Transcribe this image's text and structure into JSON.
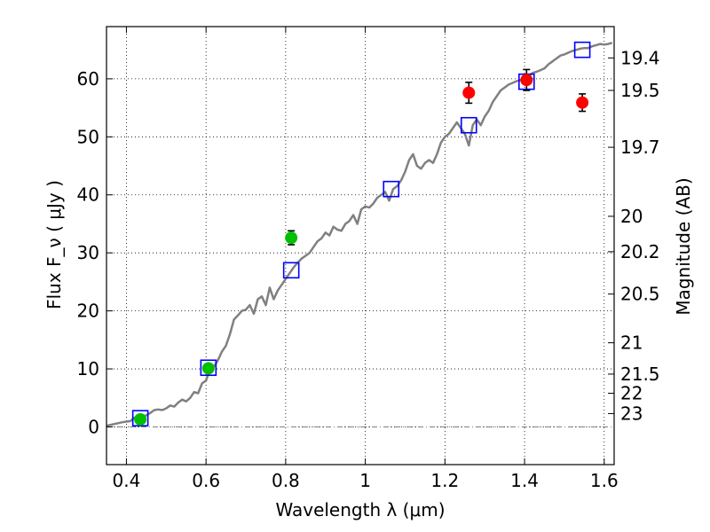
{
  "chart_data": {
    "type": "scatter",
    "xlabel": "Wavelength  λ (μm)",
    "ylabel": "Flux  F_ν  ( μJy )",
    "ylabel_right": "Magnitude (AB)",
    "xlim": [
      0.35,
      1.625
    ],
    "ylim": [
      -6.5,
      69
    ],
    "grid": true,
    "x_ticks": [
      0.4,
      0.6,
      0.8,
      1.0,
      1.2,
      1.4,
      1.6
    ],
    "x_tick_labels": [
      "0.4",
      "0.6",
      "0.8",
      "1",
      "1.2",
      "1.4",
      "1.6"
    ],
    "y_ticks": [
      0,
      10,
      20,
      30,
      40,
      50,
      60
    ],
    "y_tick_labels": [
      "0",
      "10",
      "20",
      "30",
      "40",
      "50",
      "60"
    ],
    "right_ticks": [
      {
        "label": "19.4",
        "flux": 63.6
      },
      {
        "label": "19.5",
        "flux": 58.0
      },
      {
        "label": "19.7",
        "flux": 48.2
      },
      {
        "label": "20",
        "flux": 36.3
      },
      {
        "label": "20.2",
        "flux": 30.2
      },
      {
        "label": "20.5",
        "flux": 22.9
      },
      {
        "label": "21",
        "flux": 14.5
      },
      {
        "label": "21.5",
        "flux": 9.1
      },
      {
        "label": "22",
        "flux": 5.8
      },
      {
        "label": "23",
        "flux": 2.3
      }
    ],
    "series": [
      {
        "kind": "model_curve",
        "color": "#808080",
        "points": [
          [
            0.35,
            0.2
          ],
          [
            0.37,
            0.5
          ],
          [
            0.39,
            0.8
          ],
          [
            0.41,
            1.0
          ],
          [
            0.42,
            1.6
          ],
          [
            0.43,
            1.1
          ],
          [
            0.44,
            1.8
          ],
          [
            0.45,
            2.0
          ],
          [
            0.46,
            2.4
          ],
          [
            0.47,
            2.9
          ],
          [
            0.48,
            3.0
          ],
          [
            0.49,
            2.9
          ],
          [
            0.5,
            3.2
          ],
          [
            0.51,
            3.7
          ],
          [
            0.52,
            3.5
          ],
          [
            0.53,
            4.2
          ],
          [
            0.54,
            4.7
          ],
          [
            0.55,
            4.4
          ],
          [
            0.56,
            5.0
          ],
          [
            0.57,
            6.0
          ],
          [
            0.58,
            5.8
          ],
          [
            0.59,
            7.5
          ],
          [
            0.6,
            8.0
          ],
          [
            0.61,
            10.0
          ],
          [
            0.62,
            10.4
          ],
          [
            0.63,
            11.5
          ],
          [
            0.64,
            13.0
          ],
          [
            0.65,
            14.0
          ],
          [
            0.66,
            16.0
          ],
          [
            0.67,
            18.5
          ],
          [
            0.68,
            19.2
          ],
          [
            0.69,
            20.0
          ],
          [
            0.7,
            20.2
          ],
          [
            0.71,
            21.0
          ],
          [
            0.72,
            19.5
          ],
          [
            0.73,
            22.0
          ],
          [
            0.74,
            22.5
          ],
          [
            0.75,
            21.0
          ],
          [
            0.76,
            24.0
          ],
          [
            0.77,
            22.0
          ],
          [
            0.78,
            23.5
          ],
          [
            0.79,
            24.5
          ],
          [
            0.8,
            25.5
          ],
          [
            0.81,
            26.5
          ],
          [
            0.82,
            27.5
          ],
          [
            0.83,
            28.3
          ],
          [
            0.84,
            29.0
          ],
          [
            0.85,
            29.5
          ],
          [
            0.86,
            30.0
          ],
          [
            0.87,
            31.0
          ],
          [
            0.88,
            32.0
          ],
          [
            0.89,
            32.5
          ],
          [
            0.9,
            33.5
          ],
          [
            0.91,
            33.0
          ],
          [
            0.92,
            34.5
          ],
          [
            0.93,
            34.0
          ],
          [
            0.94,
            33.8
          ],
          [
            0.95,
            35.0
          ],
          [
            0.96,
            35.5
          ],
          [
            0.97,
            36.5
          ],
          [
            0.98,
            35.0
          ],
          [
            0.99,
            37.5
          ],
          [
            1.0,
            38.0
          ],
          [
            1.01,
            37.8
          ],
          [
            1.02,
            38.5
          ],
          [
            1.03,
            39.5
          ],
          [
            1.04,
            40.0
          ],
          [
            1.05,
            40.5
          ],
          [
            1.06,
            39.0
          ],
          [
            1.07,
            41.0
          ],
          [
            1.08,
            41.5
          ],
          [
            1.09,
            42.5
          ],
          [
            1.1,
            44.0
          ],
          [
            1.11,
            46.0
          ],
          [
            1.12,
            47.0
          ],
          [
            1.13,
            45.0
          ],
          [
            1.14,
            44.5
          ],
          [
            1.15,
            45.5
          ],
          [
            1.16,
            46.0
          ],
          [
            1.17,
            45.5
          ],
          [
            1.18,
            47.0
          ],
          [
            1.19,
            49.0
          ],
          [
            1.2,
            50.0
          ],
          [
            1.21,
            50.5
          ],
          [
            1.22,
            51.5
          ],
          [
            1.23,
            52.5
          ],
          [
            1.24,
            51.5
          ],
          [
            1.25,
            50.5
          ],
          [
            1.26,
            48.5
          ],
          [
            1.27,
            52.0
          ],
          [
            1.28,
            53.0
          ],
          [
            1.29,
            52.0
          ],
          [
            1.3,
            53.5
          ],
          [
            1.31,
            54.5
          ],
          [
            1.32,
            56.0
          ],
          [
            1.33,
            57.0
          ],
          [
            1.34,
            58.0
          ],
          [
            1.35,
            58.5
          ],
          [
            1.36,
            59.0
          ],
          [
            1.37,
            59.3
          ],
          [
            1.38,
            59.6
          ],
          [
            1.39,
            59.8
          ],
          [
            1.4,
            60.0
          ],
          [
            1.41,
            60.5
          ],
          [
            1.42,
            61.0
          ],
          [
            1.43,
            61.2
          ],
          [
            1.44,
            61.5
          ],
          [
            1.45,
            61.8
          ],
          [
            1.46,
            62.5
          ],
          [
            1.47,
            63.0
          ],
          [
            1.48,
            63.5
          ],
          [
            1.49,
            64.0
          ],
          [
            1.5,
            64.2
          ],
          [
            1.51,
            64.5
          ],
          [
            1.52,
            64.8
          ],
          [
            1.53,
            65.0
          ],
          [
            1.54,
            65.2
          ],
          [
            1.55,
            65.3
          ],
          [
            1.56,
            65.3
          ],
          [
            1.57,
            65.6
          ],
          [
            1.58,
            65.8
          ],
          [
            1.59,
            66.0
          ],
          [
            1.6,
            65.9
          ],
          [
            1.61,
            66.0
          ],
          [
            1.62,
            66.2
          ]
        ]
      },
      {
        "kind": "model_photometry",
        "marker": "open_square",
        "color": "#0000ff",
        "points": [
          {
            "x": 0.435,
            "y": 1.5
          },
          {
            "x": 0.606,
            "y": 10.2
          },
          {
            "x": 0.814,
            "y": 27.0
          },
          {
            "x": 1.065,
            "y": 41.0
          },
          {
            "x": 1.26,
            "y": 52.0
          },
          {
            "x": 1.405,
            "y": 59.5
          },
          {
            "x": 1.545,
            "y": 65.0
          }
        ]
      },
      {
        "kind": "observed_optical",
        "marker": "filled_circle",
        "color": "#00c000",
        "points": [
          {
            "x": 0.435,
            "y": 1.3,
            "err": 0.3
          },
          {
            "x": 0.606,
            "y": 10.1,
            "err": 0.7
          },
          {
            "x": 0.814,
            "y": 32.6,
            "err": 1.2
          }
        ]
      },
      {
        "kind": "observed_nir",
        "marker": "filled_circle",
        "color": "#ff0000",
        "points": [
          {
            "x": 1.26,
            "y": 57.6,
            "err": 1.8
          },
          {
            "x": 1.405,
            "y": 59.8,
            "err": 1.8
          },
          {
            "x": 1.545,
            "y": 55.9,
            "err": 1.5
          }
        ]
      }
    ],
    "reference_line": {
      "y": 0,
      "style": "dash-dot",
      "color": "#808080"
    }
  }
}
